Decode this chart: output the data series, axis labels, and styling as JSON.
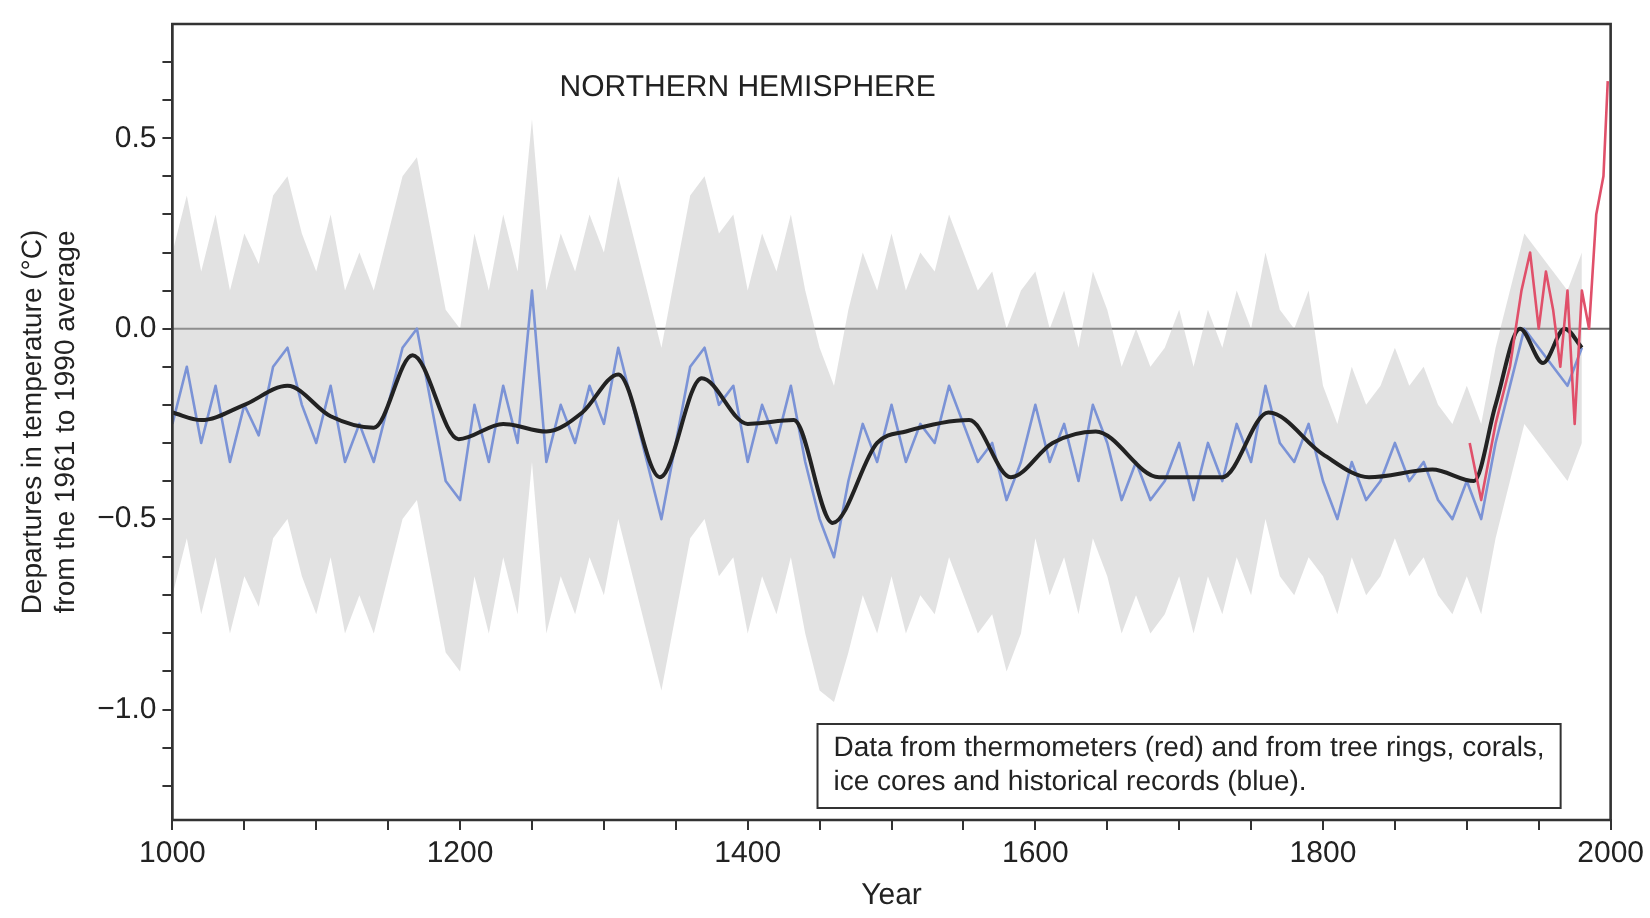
{
  "chart_data": {
    "type": "line",
    "title": "NORTHERN HEMISPHERE",
    "xlabel": "Year",
    "ylabel": "Departures in temperature (°C)\nfrom the 1961 to 1990 average",
    "xlim": [
      1000,
      2000
    ],
    "xticks": [
      1000,
      {
        "value": 1050,
        "label": null
      },
      {
        "value": 1100,
        "label": null
      },
      {
        "value": 1150,
        "label": null
      },
      1200,
      {
        "value": 1250,
        "label": null
      },
      {
        "value": 1300,
        "label": null
      },
      {
        "value": 1350,
        "label": null
      },
      1400,
      {
        "value": 1450,
        "label": null
      },
      {
        "value": 1500,
        "label": null
      },
      {
        "value": 1550,
        "label": null
      },
      1600,
      {
        "value": 1650,
        "label": null
      },
      {
        "value": 1700,
        "label": null
      },
      {
        "value": 1750,
        "label": null
      },
      1800,
      {
        "value": 1850,
        "label": null
      },
      {
        "value": 1900,
        "label": null
      },
      {
        "value": 1950,
        "label": null
      },
      2000
    ],
    "ylim": [
      -1.29,
      0.8
    ],
    "yticks": [
      {
        "value": -1.2,
        "label": null
      },
      {
        "value": -1.1,
        "label": null
      },
      {
        "value": -1.0,
        "label": "−1.0"
      },
      {
        "value": -0.9,
        "label": null
      },
      {
        "value": -0.8,
        "label": null
      },
      {
        "value": -0.7,
        "label": null
      },
      {
        "value": -0.6,
        "label": null
      },
      {
        "value": -0.5,
        "label": "−0.5"
      },
      {
        "value": -0.4,
        "label": null
      },
      {
        "value": -0.3,
        "label": null
      },
      {
        "value": -0.2,
        "label": null
      },
      {
        "value": -0.1,
        "label": null
      },
      {
        "value": 0,
        "label": "0.0"
      },
      {
        "value": 0.1,
        "label": null
      },
      {
        "value": 0.2,
        "label": null
      },
      {
        "value": 0.3,
        "label": null
      },
      {
        "value": 0.4,
        "label": null
      },
      {
        "value": 0.5,
        "label": "0.5"
      },
      {
        "value": 0.6,
        "label": null
      },
      {
        "value": 0.7,
        "label": null
      }
    ],
    "grid": false,
    "legend": false,
    "marker": "none",
    "line_style": "solid",
    "ref_lines": [
      {
        "axis": "y",
        "value": 0,
        "color": "#666666"
      }
    ],
    "annotations": [
      "Data from thermometers (red) and from tree rings, corals, ice cores and historical records (blue)."
    ],
    "series": [
      {
        "color": "#7b93d6",
        "x": [
          1000,
          1010,
          1020,
          1030,
          1040,
          1050,
          1060,
          1070,
          1080,
          1090,
          1100,
          1110,
          1120,
          1130,
          1140,
          1150,
          1160,
          1170,
          1180,
          1190,
          1200,
          1210,
          1220,
          1230,
          1240,
          1250,
          1260,
          1270,
          1280,
          1290,
          1300,
          1310,
          1320,
          1330,
          1340,
          1350,
          1360,
          1370,
          1380,
          1390,
          1400,
          1410,
          1420,
          1430,
          1440,
          1450,
          1460,
          1470,
          1480,
          1490,
          1500,
          1510,
          1520,
          1530,
          1540,
          1550,
          1560,
          1570,
          1580,
          1590,
          1600,
          1610,
          1620,
          1630,
          1640,
          1650,
          1660,
          1670,
          1680,
          1690,
          1700,
          1710,
          1720,
          1730,
          1740,
          1750,
          1760,
          1770,
          1780,
          1790,
          1800,
          1810,
          1820,
          1830,
          1840,
          1850,
          1860,
          1870,
          1880,
          1890,
          1900,
          1910,
          1920,
          1930,
          1940,
          1950,
          1960,
          1970,
          1980
        ],
        "values": [
          -0.25,
          -0.1,
          -0.3,
          -0.15,
          -0.35,
          -0.2,
          -0.28,
          -0.1,
          -0.05,
          -0.2,
          -0.3,
          -0.15,
          -0.35,
          -0.25,
          -0.35,
          -0.2,
          -0.05,
          0.0,
          -0.2,
          -0.4,
          -0.45,
          -0.2,
          -0.35,
          -0.15,
          -0.3,
          0.1,
          -0.35,
          -0.2,
          -0.3,
          -0.15,
          -0.25,
          -0.05,
          -0.2,
          -0.35,
          -0.5,
          -0.3,
          -0.1,
          -0.05,
          -0.2,
          -0.15,
          -0.35,
          -0.2,
          -0.3,
          -0.15,
          -0.35,
          -0.5,
          -0.6,
          -0.4,
          -0.25,
          -0.35,
          -0.2,
          -0.35,
          -0.25,
          -0.3,
          -0.15,
          -0.25,
          -0.35,
          -0.3,
          -0.45,
          -0.35,
          -0.2,
          -0.35,
          -0.25,
          -0.4,
          -0.2,
          -0.3,
          -0.45,
          -0.35,
          -0.45,
          -0.4,
          -0.3,
          -0.45,
          -0.3,
          -0.4,
          -0.25,
          -0.35,
          -0.15,
          -0.3,
          -0.35,
          -0.25,
          -0.4,
          -0.5,
          -0.35,
          -0.45,
          -0.4,
          -0.3,
          -0.4,
          -0.35,
          -0.45,
          -0.5,
          -0.4,
          -0.5,
          -0.3,
          -0.15,
          0.0,
          -0.05,
          -0.1,
          -0.15,
          -0.05
        ],
        "upper": [
          0.2,
          0.35,
          0.15,
          0.3,
          0.1,
          0.25,
          0.17,
          0.35,
          0.4,
          0.25,
          0.15,
          0.3,
          0.1,
          0.2,
          0.1,
          0.25,
          0.4,
          0.45,
          0.25,
          0.05,
          0.0,
          0.25,
          0.1,
          0.3,
          0.15,
          0.55,
          0.1,
          0.25,
          0.15,
          0.3,
          0.2,
          0.4,
          0.25,
          0.1,
          -0.05,
          0.15,
          0.35,
          0.4,
          0.25,
          0.3,
          0.1,
          0.25,
          0.15,
          0.3,
          0.1,
          -0.05,
          -0.15,
          0.05,
          0.2,
          0.1,
          0.25,
          0.1,
          0.2,
          0.15,
          0.3,
          0.2,
          0.1,
          0.15,
          0.0,
          0.1,
          0.15,
          0.0,
          0.1,
          -0.05,
          0.15,
          0.05,
          -0.1,
          0.0,
          -0.1,
          -0.05,
          0.05,
          -0.1,
          0.05,
          -0.05,
          0.1,
          0.0,
          0.2,
          0.05,
          0.0,
          0.1,
          -0.15,
          -0.25,
          -0.1,
          -0.2,
          -0.15,
          -0.05,
          -0.15,
          -0.1,
          -0.2,
          -0.25,
          -0.15,
          -0.25,
          -0.05,
          0.1,
          0.25,
          0.2,
          0.15,
          0.1,
          0.2
        ],
        "lower": [
          -0.7,
          -0.55,
          -0.75,
          -0.6,
          -0.8,
          -0.65,
          -0.73,
          -0.55,
          -0.5,
          -0.65,
          -0.75,
          -0.6,
          -0.8,
          -0.7,
          -0.8,
          -0.65,
          -0.5,
          -0.45,
          -0.65,
          -0.85,
          -0.9,
          -0.65,
          -0.8,
          -0.6,
          -0.75,
          -0.35,
          -0.8,
          -0.65,
          -0.75,
          -0.6,
          -0.7,
          -0.5,
          -0.65,
          -0.8,
          -0.95,
          -0.75,
          -0.55,
          -0.5,
          -0.65,
          -0.6,
          -0.8,
          -0.65,
          -0.75,
          -0.6,
          -0.8,
          -0.95,
          -0.98,
          -0.85,
          -0.7,
          -0.8,
          -0.65,
          -0.8,
          -0.7,
          -0.75,
          -0.6,
          -0.7,
          -0.8,
          -0.75,
          -0.9,
          -0.8,
          -0.55,
          -0.7,
          -0.6,
          -0.75,
          -0.55,
          -0.65,
          -0.8,
          -0.7,
          -0.8,
          -0.75,
          -0.65,
          -0.8,
          -0.65,
          -0.75,
          -0.6,
          -0.7,
          -0.5,
          -0.65,
          -0.7,
          -0.6,
          -0.65,
          -0.75,
          -0.6,
          -0.7,
          -0.65,
          -0.55,
          -0.65,
          -0.6,
          -0.7,
          -0.75,
          -0.65,
          -0.75,
          -0.55,
          -0.4,
          -0.25,
          -0.3,
          -0.35,
          -0.4,
          -0.3
        ]
      },
      {
        "color": "#222222",
        "x": [
          1000,
          1020,
          1050,
          1080,
          1110,
          1140,
          1167,
          1199,
          1230,
          1260,
          1285,
          1310,
          1339,
          1368,
          1400,
          1432,
          1459,
          1490,
          1510,
          1554,
          1583,
          1612,
          1642,
          1686,
          1730,
          1762,
          1800,
          1832,
          1876,
          1905,
          1920,
          1937,
          1953,
          1968,
          1980
        ],
        "values": [
          -0.22,
          -0.24,
          -0.2,
          -0.15,
          -0.23,
          -0.26,
          -0.07,
          -0.29,
          -0.25,
          -0.27,
          -0.22,
          -0.12,
          -0.39,
          -0.13,
          -0.25,
          -0.24,
          -0.51,
          -0.3,
          -0.27,
          -0.24,
          -0.39,
          -0.3,
          -0.27,
          -0.39,
          -0.39,
          -0.22,
          -0.33,
          -0.39,
          -0.37,
          -0.4,
          -0.2,
          0.0,
          -0.09,
          0.0,
          -0.05
        ]
      },
      {
        "color": "#e0506a",
        "x": [
          1902,
          1910,
          1920,
          1930,
          1938,
          1944,
          1950,
          1955,
          1960,
          1965,
          1970,
          1975,
          1980,
          1985,
          1990,
          1995,
          1998
        ],
        "values": [
          -0.3,
          -0.45,
          -0.25,
          -0.1,
          0.1,
          0.2,
          0.0,
          0.15,
          0.05,
          -0.1,
          0.1,
          -0.25,
          0.1,
          0.0,
          0.3,
          0.4,
          0.65
        ]
      }
    ]
  }
}
